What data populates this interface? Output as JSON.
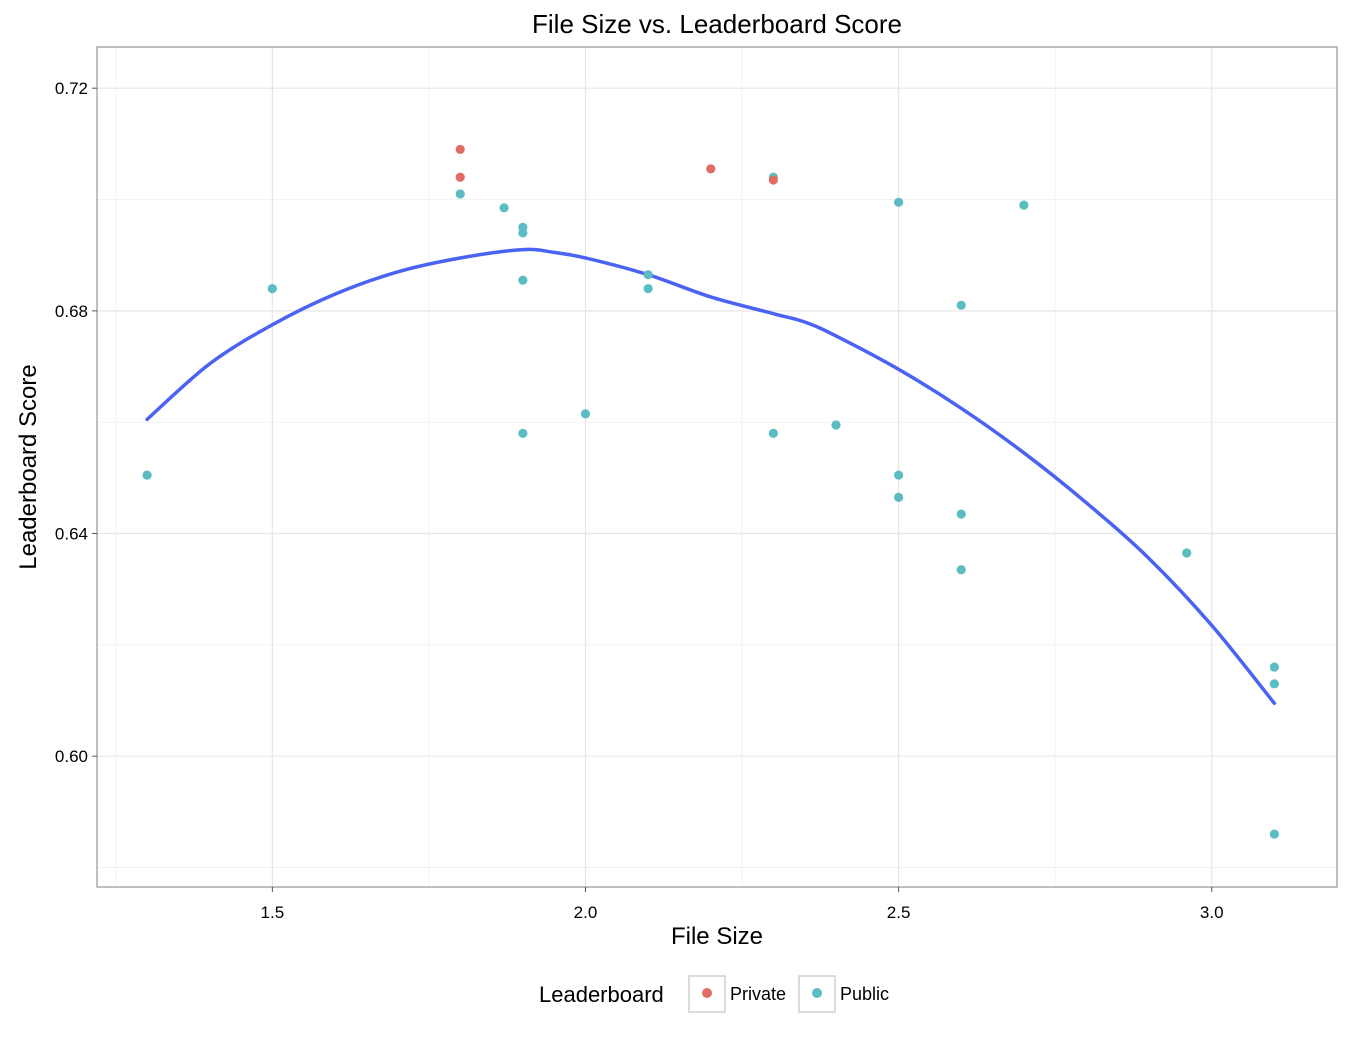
{
  "chart_data": {
    "type": "scatter",
    "title": "File Size vs. Leaderboard Score",
    "xlabel": "File Size",
    "ylabel": "Leaderboard Score",
    "xlim": [
      1.22,
      3.2
    ],
    "ylim": [
      0.5765,
      0.7274
    ],
    "x_ticks": [
      1.5,
      2.0,
      2.5,
      3.0
    ],
    "x_tick_labels": [
      "1.5",
      "2.0",
      "2.5",
      "3.0"
    ],
    "y_ticks": [
      0.6,
      0.64,
      0.68,
      0.72
    ],
    "y_tick_labels": [
      "0.60",
      "0.64",
      "0.68",
      "0.72"
    ],
    "grid": true,
    "legend": {
      "title": "Leaderboard",
      "position": "bottom",
      "entries": [
        {
          "label": "Private",
          "color": "#e06c64"
        },
        {
          "label": "Public",
          "color": "#5bbcc3"
        }
      ]
    },
    "series": [
      {
        "name": "Private",
        "color": "#e06c64",
        "points": [
          {
            "x": 1.8,
            "y": 0.709
          },
          {
            "x": 1.8,
            "y": 0.704
          },
          {
            "x": 2.2,
            "y": 0.7055
          },
          {
            "x": 2.3,
            "y": 0.7035
          }
        ]
      },
      {
        "name": "Public",
        "color": "#5bbcc3",
        "points": [
          {
            "x": 1.3,
            "y": 0.6505
          },
          {
            "x": 1.5,
            "y": 0.684
          },
          {
            "x": 1.8,
            "y": 0.701
          },
          {
            "x": 1.87,
            "y": 0.6985
          },
          {
            "x": 1.9,
            "y": 0.695
          },
          {
            "x": 1.9,
            "y": 0.694
          },
          {
            "x": 1.9,
            "y": 0.6855
          },
          {
            "x": 1.9,
            "y": 0.658
          },
          {
            "x": 2.0,
            "y": 0.6615
          },
          {
            "x": 2.1,
            "y": 0.6865
          },
          {
            "x": 2.1,
            "y": 0.684
          },
          {
            "x": 2.3,
            "y": 0.704
          },
          {
            "x": 2.3,
            "y": 0.658
          },
          {
            "x": 2.4,
            "y": 0.6595
          },
          {
            "x": 2.5,
            "y": 0.6995
          },
          {
            "x": 2.5,
            "y": 0.6505
          },
          {
            "x": 2.5,
            "y": 0.6465
          },
          {
            "x": 2.6,
            "y": 0.681
          },
          {
            "x": 2.6,
            "y": 0.6435
          },
          {
            "x": 2.6,
            "y": 0.6335
          },
          {
            "x": 2.7,
            "y": 0.699
          },
          {
            "x": 2.96,
            "y": 0.6365
          },
          {
            "x": 3.1,
            "y": 0.616
          },
          {
            "x": 3.1,
            "y": 0.613
          },
          {
            "x": 3.1,
            "y": 0.586
          }
        ]
      }
    ],
    "trend_line": {
      "color": "#4a63f2",
      "points": [
        {
          "x": 1.3,
          "y": 0.6605
        },
        {
          "x": 1.4,
          "y": 0.6705
        },
        {
          "x": 1.5,
          "y": 0.6775
        },
        {
          "x": 1.6,
          "y": 0.683
        },
        {
          "x": 1.7,
          "y": 0.687
        },
        {
          "x": 1.8,
          "y": 0.6895
        },
        {
          "x": 1.9,
          "y": 0.691
        },
        {
          "x": 1.95,
          "y": 0.6905
        },
        {
          "x": 2.0,
          "y": 0.6895
        },
        {
          "x": 2.1,
          "y": 0.6865
        },
        {
          "x": 2.2,
          "y": 0.6825
        },
        {
          "x": 2.3,
          "y": 0.6795
        },
        {
          "x": 2.35,
          "y": 0.678
        },
        {
          "x": 2.4,
          "y": 0.6755
        },
        {
          "x": 2.5,
          "y": 0.6695
        },
        {
          "x": 2.6,
          "y": 0.6625
        },
        {
          "x": 2.7,
          "y": 0.6545
        },
        {
          "x": 2.8,
          "y": 0.6455
        },
        {
          "x": 2.9,
          "y": 0.6355
        },
        {
          "x": 3.0,
          "y": 0.6235
        },
        {
          "x": 3.1,
          "y": 0.6095
        }
      ]
    }
  }
}
